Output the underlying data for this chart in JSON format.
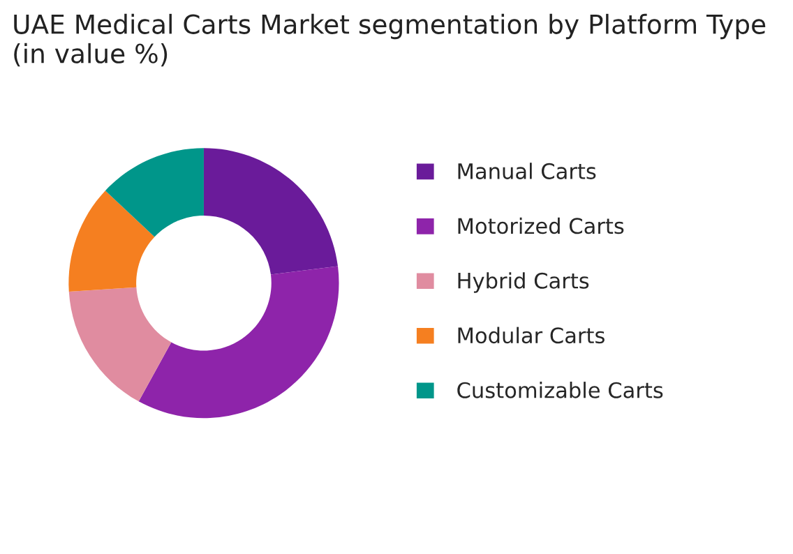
{
  "chart_data": {
    "type": "donut",
    "title": "UAE Medical Carts Market segmentation by Platform Type (in value %)",
    "categories": [
      "Manual Carts",
      "Motorized Carts",
      "Hybrid Carts",
      "Modular Carts",
      "Customizable Carts"
    ],
    "values": [
      23,
      35,
      16,
      13,
      13
    ],
    "colors": [
      "#6a1b9a",
      "#8e24aa",
      "#e08ca0",
      "#f57f20",
      "#00968a"
    ],
    "legend": "right"
  }
}
